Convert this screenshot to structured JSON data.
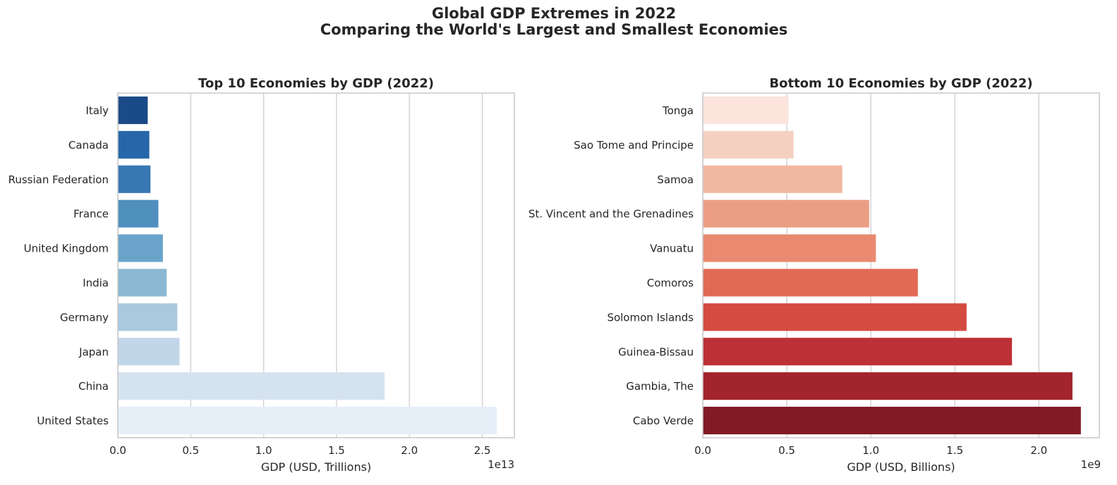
{
  "figure": {
    "title_line1": "Global GDP Extremes in 2022",
    "title_line2": "Comparing the World's Largest and Smallest Economies"
  },
  "chart_data": [
    {
      "type": "bar",
      "orientation": "horizontal",
      "title": "Top 10 Economies by GDP (2022)",
      "xlabel": "GDP (USD, Trillions)",
      "ylabel": "",
      "offset_text": "1e13",
      "xlim": [
        0,
        27200000000000.0
      ],
      "xticks": [
        0,
        5000000000000.0,
        10000000000000.0,
        15000000000000.0,
        20000000000000.0,
        25000000000000.0
      ],
      "xtick_labels": [
        "0.0",
        "0.5",
        "1.0",
        "1.5",
        "2.0",
        "2.5"
      ],
      "grid": "x",
      "categories": [
        "Italy",
        "Canada",
        "Russian Federation",
        "France",
        "United Kingdom",
        "India",
        "Germany",
        "Japan",
        "China",
        "United States"
      ],
      "values": [
        2050000000000.0,
        2160000000000.0,
        2240000000000.0,
        2780000000000.0,
        3090000000000.0,
        3350000000000.0,
        4080000000000.0,
        4230000000000.0,
        18300000000000.0,
        26000000000000.0
      ],
      "colors": [
        "#1b4a88",
        "#2767a9",
        "#3877b3",
        "#4f8fbe",
        "#6aa4cb",
        "#8ab8d3",
        "#a9c9df",
        "#c1d6e9",
        "#d5e3f1",
        "#e6eff8"
      ]
    },
    {
      "type": "bar",
      "orientation": "horizontal",
      "title": "Bottom 10 Economies by GDP (2022)",
      "xlabel": "GDP (USD, Billions)",
      "ylabel": "",
      "offset_text": "1e9",
      "xlim": [
        0,
        2360000000.0
      ],
      "xticks": [
        0,
        500000000.0,
        1000000000.0,
        1500000000.0,
        2000000000.0
      ],
      "xtick_labels": [
        "0.0",
        "0.5",
        "1.0",
        "1.5",
        "2.0"
      ],
      "grid": "x",
      "categories": [
        "Tonga",
        "Sao Tome and Principe",
        "Samoa",
        "St. Vincent and the Grenadines",
        "Vanuatu",
        "Comoros",
        "Solomon Islands",
        "Guinea-Bissau",
        "Gambia, The",
        "Cabo Verde"
      ],
      "values": [
        510000000.0,
        540000000.0,
        830000000.0,
        990000000.0,
        1030000000.0,
        1280000000.0,
        1570000000.0,
        1840000000.0,
        2200000000.0,
        2250000000.0
      ],
      "colors": [
        "#fbe4dc",
        "#f5d0c1",
        "#f1b8a1",
        "#eb9e84",
        "#e98970",
        "#e16a55",
        "#d54b41",
        "#bd3035",
        "#a2242d",
        "#811a24"
      ]
    }
  ]
}
